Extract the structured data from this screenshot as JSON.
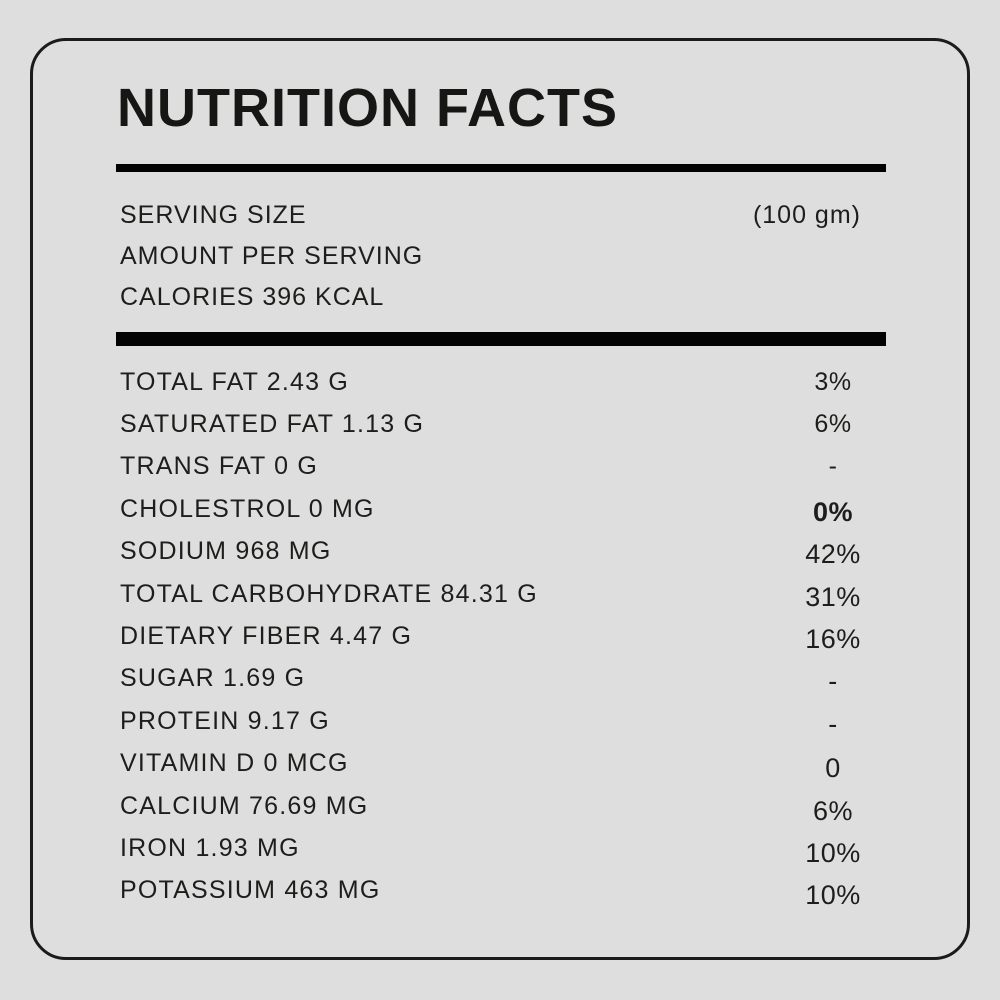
{
  "title": "NUTRITION FACTS",
  "serving": {
    "size_label": "SERVING SIZE",
    "size_value": "(100 gm)",
    "amount_label": "AMOUNT PER SERVING",
    "calories": "CALORIES 396 KCAL"
  },
  "rows": [
    {
      "label": "TOTAL FAT 2.43 G",
      "value": "3%"
    },
    {
      "label": "SATURATED FAT 1.13 G",
      "value": "6%"
    },
    {
      "label": "TRANS FAT 0 G",
      "value": "-"
    },
    {
      "label": "CHOLESTROL 0 MG",
      "value": "0%"
    },
    {
      "label": "SODIUM 968 MG",
      "value": "42%"
    },
    {
      "label": "TOTAL CARBOHYDRATE 84.31 G",
      "value": "31%"
    },
    {
      "label": "DIETARY FIBER 4.47 G",
      "value": "16%"
    },
    {
      "label": "SUGAR 1.69 G",
      "value": "-"
    },
    {
      "label": "PROTEIN 9.17 G",
      "value": "-"
    },
    {
      "label": "VITAMIN D 0 MCG",
      "value": "0"
    },
    {
      "label": "CALCIUM 76.69 MG",
      "value": "6%"
    },
    {
      "label": "IRON 1.93 MG",
      "value": "10%"
    },
    {
      "label": "POTASSIUM 463 MG",
      "value": "10%"
    }
  ],
  "colors": {
    "background": "#dedede",
    "text": "#1d1d1b",
    "bar": "#020202",
    "border": "#1b1b1b"
  }
}
